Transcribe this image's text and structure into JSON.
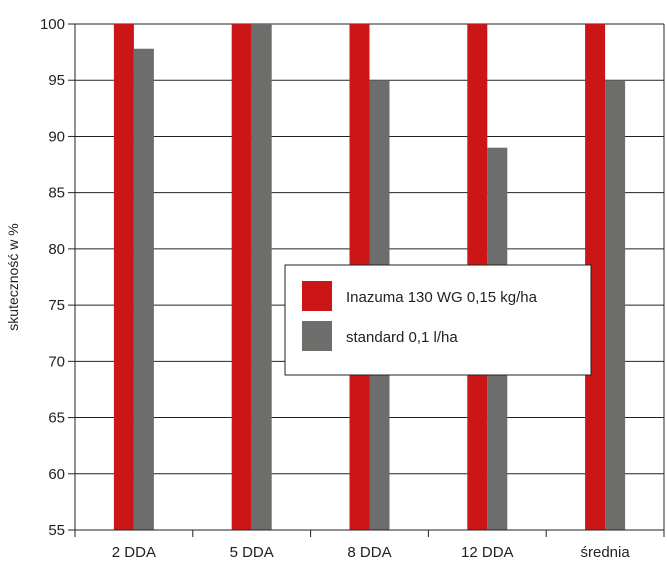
{
  "chart_data": {
    "type": "bar",
    "title": "",
    "xlabel": "",
    "ylabel": "skuteczność w %",
    "ylim": [
      55,
      100
    ],
    "yticks": [
      55,
      60,
      65,
      70,
      75,
      80,
      85,
      90,
      95,
      100
    ],
    "grid": "horizontal",
    "legend_position": "center-right",
    "categories": [
      "2 DDA",
      "5 DDA",
      "8 DDA",
      "12 DDA",
      "średnia"
    ],
    "series": [
      {
        "name": "Inazuma 130 WG 0,15 kg/ha",
        "color": "#cc1517",
        "values": [
          100,
          100,
          100,
          100,
          100
        ]
      },
      {
        "name": "standard 0,1 l/ha",
        "color": "#6d6d6b",
        "values": [
          97.8,
          100,
          95,
          89,
          95
        ]
      }
    ]
  }
}
